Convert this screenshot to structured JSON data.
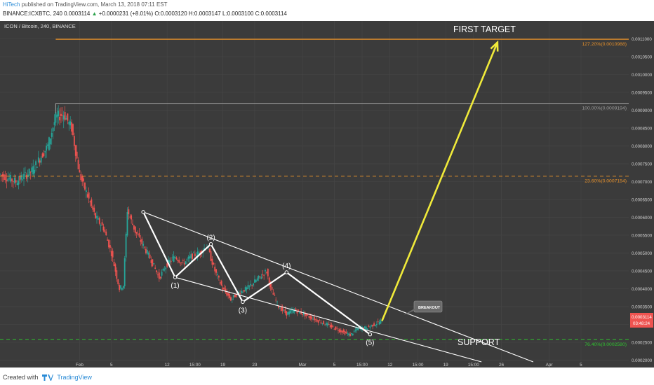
{
  "header": {
    "author": "HiTech",
    "published": "published on TradingView.com, March 13, 2018 07:11 EST",
    "symbol_line": "BINANCE:ICXBTC, 240",
    "last": "0.0003114",
    "change_arrow": "▲",
    "change": "+0.0000231 (+8.01%)",
    "ohlc": "O:0.0003120 H:0.0003147 L:0.0003100 C:0.0003114"
  },
  "chart_data": {
    "type": "candlestick",
    "title": "ICON / Bitcoin, 240, BINANCE",
    "y_range": [
      0.000195,
      0.00115
    ],
    "y_ticks": [
      "0.0011000",
      "0.0010500",
      "0.0010000",
      "0.0009500",
      "0.0009000",
      "0.0008500",
      "0.0008000",
      "0.0007500",
      "0.0007000",
      "0.0006500",
      "0.0006000",
      "0.0005500",
      "0.0005000",
      "0.0004500",
      "0.0004000",
      "0.0003500",
      "0.0003000",
      "0.0002500",
      "0.0002000"
    ],
    "y_tick_values": [
      0.0011,
      0.00105,
      0.001,
      0.00095,
      0.0009,
      0.00085,
      0.0008,
      0.00075,
      0.0007,
      0.00065,
      0.0006,
      0.00055,
      0.0005,
      0.00045,
      0.0004,
      0.00035,
      0.0003,
      0.00025,
      0.0002
    ],
    "x_ticks": [
      "Feb",
      "5",
      "12",
      "15:00",
      "19",
      "23",
      "Mar",
      "5",
      "15:00",
      "12",
      "15:00",
      "19",
      "15:00",
      "26",
      "Apr",
      "5"
    ],
    "x_tick_days": [
      32,
      36,
      43,
      46.5,
      50,
      54,
      60,
      64,
      67.5,
      71,
      74.5,
      78,
      81.5,
      85,
      91,
      95
    ],
    "x_range_days": [
      22,
      101
    ],
    "price_path": [
      [
        22,
        0.00072
      ],
      [
        24,
        0.0007
      ],
      [
        26,
        0.00073
      ],
      [
        28,
        0.0008
      ],
      [
        29,
        0.00088
      ],
      [
        30,
        0.00089
      ],
      [
        31,
        0.00085
      ],
      [
        32,
        0.00072
      ],
      [
        33,
        0.00066
      ],
      [
        34,
        0.0006
      ],
      [
        35,
        0.00057
      ],
      [
        36,
        0.0005
      ],
      [
        37,
        0.0004
      ],
      [
        37.5,
        0.00041
      ],
      [
        38,
        0.00062
      ],
      [
        39,
        0.00056
      ],
      [
        40,
        0.00052
      ],
      [
        41,
        0.00048
      ],
      [
        42,
        0.00043
      ],
      [
        43,
        0.00047
      ],
      [
        44,
        0.00049
      ],
      [
        45,
        0.00047
      ],
      [
        46,
        0.00049
      ],
      [
        47,
        0.0005
      ],
      [
        48,
        0.00052
      ],
      [
        49,
        0.00045
      ],
      [
        50,
        0.0004
      ],
      [
        51,
        0.00037
      ],
      [
        52,
        0.00039
      ],
      [
        53,
        0.0004
      ],
      [
        54,
        0.00042
      ],
      [
        55,
        0.00044
      ],
      [
        55.5,
        0.00045
      ],
      [
        56,
        0.0004
      ],
      [
        57,
        0.00035
      ],
      [
        58,
        0.00033
      ],
      [
        59,
        0.00034
      ],
      [
        60,
        0.00033
      ],
      [
        61,
        0.00032
      ],
      [
        62,
        0.00031
      ],
      [
        63,
        0.0003
      ],
      [
        64,
        0.00029
      ],
      [
        65,
        0.00028
      ],
      [
        66,
        0.00027
      ],
      [
        67,
        0.00029
      ],
      [
        68,
        0.00029
      ],
      [
        69,
        0.0003
      ],
      [
        70,
        0.00031
      ]
    ],
    "fib_levels": [
      {
        "label": "127.20%(0.0010988)",
        "value": 0.0010988,
        "color": "#e8912a",
        "style": "solid"
      },
      {
        "label": "100.00%(0.0009194)",
        "value": 0.0009194,
        "color": "#9e9e9e",
        "style": "solid"
      },
      {
        "label": "23.60%(0.0007154)",
        "value": 0.0007154,
        "color": "#e8912a",
        "style": "dashed"
      },
      {
        "label": "76.40%(0.0002580)",
        "value": 0.000258,
        "color": "#2fc52f",
        "style": "dashed"
      }
    ],
    "wave_points": [
      {
        "label": "",
        "day": 40,
        "value": 0.000615
      },
      {
        "label": "(1)",
        "day": 44,
        "value": 0.000432
      },
      {
        "label": "(2)",
        "day": 48.5,
        "value": 0.000525
      },
      {
        "label": "(3)",
        "day": 52.5,
        "value": 0.000363
      },
      {
        "label": "(4)",
        "day": 58,
        "value": 0.000446
      },
      {
        "label": "(5)",
        "day": 68.5,
        "value": 0.000272
      }
    ],
    "wedge_upper": [
      [
        40,
        0.000615
      ],
      [
        89,
        0.000195
      ]
    ],
    "wedge_lower": [
      [
        44,
        0.000432
      ],
      [
        82.5,
        0.000195
      ]
    ],
    "projection": {
      "from": [
        70,
        0.00031
      ],
      "to": [
        84.5,
        0.00109
      ]
    },
    "annotations": {
      "first_target": "FIRST TARGET",
      "support": "SUPPORT",
      "breakout": "BREAKOUT"
    },
    "price_label": "0.0003114",
    "countdown": "03:48:24",
    "colors": {
      "background": "#3b3b3b",
      "up": "#26a69a",
      "down": "#ef5350",
      "accent": "#f0ea3a",
      "wedge": "#ffffff"
    }
  },
  "footer": {
    "created_with": "Created with",
    "brand": "TradingView"
  }
}
